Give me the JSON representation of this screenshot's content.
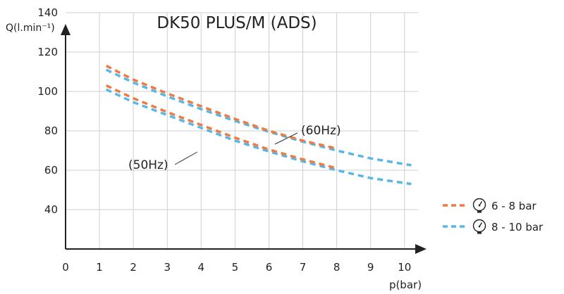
{
  "chart_data": {
    "type": "line",
    "title": "DK50 PLUS/M (ADS)",
    "xlabel": "p(bar)",
    "ylabel": "Q(l.min⁻¹)",
    "xlim": [
      0,
      10.4
    ],
    "ylim": [
      20,
      140
    ],
    "xticks": [
      "0",
      "1",
      "2",
      "3",
      "4",
      "5",
      "6",
      "7",
      "8",
      "9",
      "10"
    ],
    "yticks": [
      "40",
      "60",
      "80",
      "100",
      "120",
      "140"
    ],
    "grid": true,
    "legend_position": "right",
    "legend": [
      {
        "label": "6 - 8 bar",
        "color": "#ec7b45",
        "icon": "pressure-gauge-icon"
      },
      {
        "label": "8 - 10 bar",
        "color": "#5ab6e4",
        "icon": "pressure-gauge-icon"
      }
    ],
    "annotations": [
      {
        "text": "(60Hz)",
        "x": 7,
        "y": 85
      },
      {
        "text": "(50Hz)",
        "x": 2.8,
        "y": 72
      }
    ],
    "series": [
      {
        "color": "#5ab6e4",
        "x": [
          1.2,
          2,
          3,
          4,
          5,
          6,
          7,
          8,
          9,
          10.2
        ],
        "values": [
          111,
          104.5,
          97.5,
          91,
          85,
          79.5,
          74.5,
          70,
          66,
          62.5
        ]
      },
      {
        "color": "#5ab6e4",
        "x": [
          1.2,
          2,
          3,
          4,
          5,
          6,
          7,
          8,
          9,
          10.2
        ],
        "values": [
          101,
          94.5,
          88,
          81.5,
          75,
          69.5,
          64.5,
          60,
          56,
          53
        ]
      },
      {
        "color": "#ec7b45",
        "x": [
          1.2,
          2,
          3,
          4,
          5,
          6,
          7,
          8
        ],
        "values": [
          113,
          106,
          99,
          92.5,
          86,
          80,
          75,
          71
        ]
      },
      {
        "color": "#ec7b45",
        "x": [
          1.2,
          2,
          3,
          4,
          5,
          6,
          7,
          8
        ],
        "values": [
          103,
          96.5,
          89.5,
          83,
          76.5,
          70.5,
          65.5,
          61
        ]
      }
    ]
  }
}
